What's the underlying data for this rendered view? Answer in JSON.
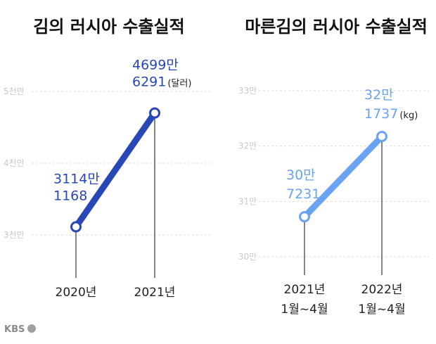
{
  "branding": {
    "logo": "KBS"
  },
  "chart_data": [
    {
      "type": "line",
      "title": "김의 러시아 수출실적",
      "categories": [
        "2020년",
        "2021년"
      ],
      "values": [
        31141168,
        46996291
      ],
      "unit": "달러",
      "ylim": [
        25000000,
        50000000
      ],
      "yticks": [
        30000000,
        40000000,
        50000000
      ],
      "ytick_labels": [
        "3천만",
        "4천만",
        "5천만"
      ],
      "grid": true,
      "color": "#2a47b8",
      "point_labels": [
        {
          "line1": "3114만",
          "line2": "1168",
          "suffix": ""
        },
        {
          "line1": "4699만",
          "line2": "6291",
          "suffix": "(달러)"
        }
      ]
    },
    {
      "type": "line",
      "title": "마른김의 러시아 수출실적",
      "categories": [
        [
          "2021년",
          "1월~4월"
        ],
        [
          "2022년",
          "1월~4월"
        ]
      ],
      "values": [
        307231,
        321737
      ],
      "unit": "kg",
      "ylim": [
        300000,
        330000
      ],
      "yticks": [
        300000,
        310000,
        320000,
        330000
      ],
      "ytick_labels": [
        "30만",
        "31만",
        "32만",
        "33만"
      ],
      "grid": true,
      "color": "#6aa3f4",
      "point_labels": [
        {
          "line1": "30만",
          "line2": "7231",
          "suffix": ""
        },
        {
          "line1": "32만",
          "line2": "1737",
          "suffix": "(kg)"
        }
      ]
    }
  ]
}
